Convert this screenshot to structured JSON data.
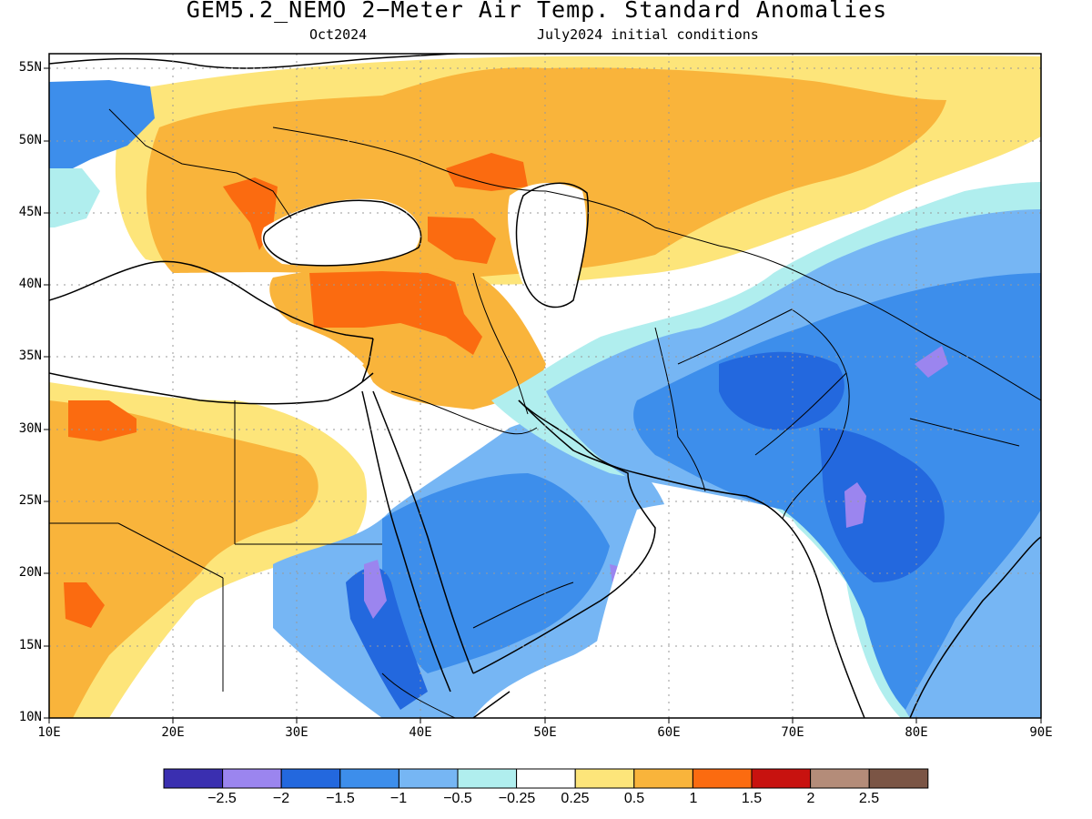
{
  "title": "GEM5.2_NEMO 2−Meter Air Temp. Standard Anomalies",
  "subtitle_left": "Oct2024",
  "subtitle_right": "July2024 initial conditions",
  "map": {
    "lon_range": [
      10,
      90
    ],
    "lat_range": [
      10,
      56
    ],
    "lon_ticks": [
      "10E",
      "20E",
      "30E",
      "40E",
      "50E",
      "60E",
      "70E",
      "80E",
      "90E"
    ],
    "lat_ticks": [
      "55N",
      "50N",
      "45N",
      "40N",
      "35N",
      "30N",
      "25N",
      "20N",
      "15N",
      "10N"
    ]
  },
  "colorbar": {
    "colors": [
      "#3a2fb0",
      "#9b85ef",
      "#2368de",
      "#3d8eeb",
      "#76b6f4",
      "#b0eeee",
      "#ffffff",
      "#fde57a",
      "#f9b43b",
      "#fb6b10",
      "#c8120f",
      "#b48c79",
      "#7b5545"
    ],
    "labels": [
      "−2.5",
      "−2",
      "−1.5",
      "−1",
      "−0.5",
      "−0.25",
      "0.25",
      "0.5",
      "1",
      "1.5",
      "2",
      "2.5"
    ]
  }
}
